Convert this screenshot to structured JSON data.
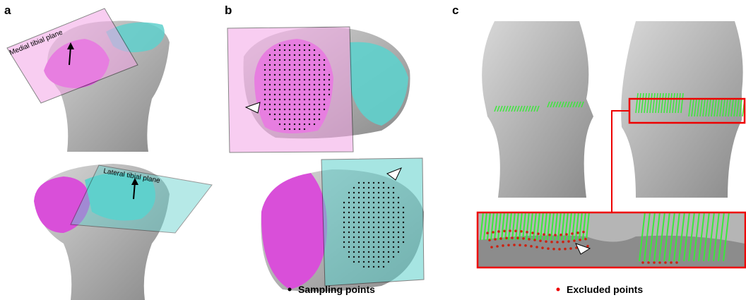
{
  "panels": [
    {
      "label": "a",
      "annotations": [
        "Medial tibial plane",
        "Lateral tibial plane"
      ]
    },
    {
      "label": "b",
      "legend": "Sampling points"
    },
    {
      "label": "c",
      "legend": "Excluded points"
    }
  ]
}
